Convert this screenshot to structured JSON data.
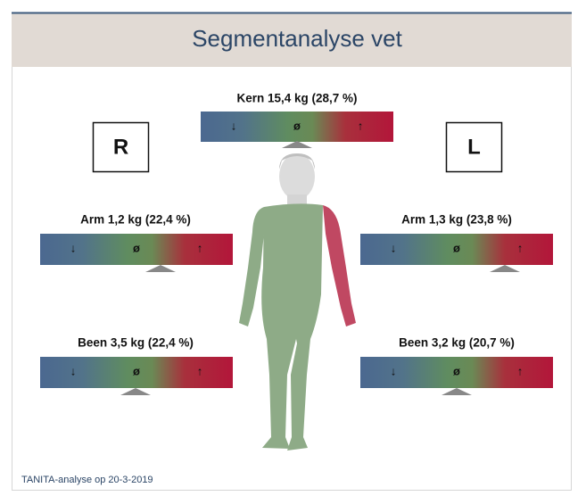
{
  "header": {
    "title": "Segmentanalyse vet"
  },
  "sides": {
    "right": "R",
    "left": "L"
  },
  "gauge_symbols": [
    "↓",
    "ø",
    "↑"
  ],
  "segments": {
    "trunk": "Kern 15,4 kg (28,7 %)",
    "right_arm": "Arm 1,2 kg (22,4 %)",
    "left_arm": "Arm 1,3 kg (23,8 %)",
    "right_leg": "Been 3,5 kg (22,4 %)",
    "left_leg": "Been 3,2 kg (20,7 %)"
  },
  "footer": "TANITA-analyse op 20-3-2019"
}
